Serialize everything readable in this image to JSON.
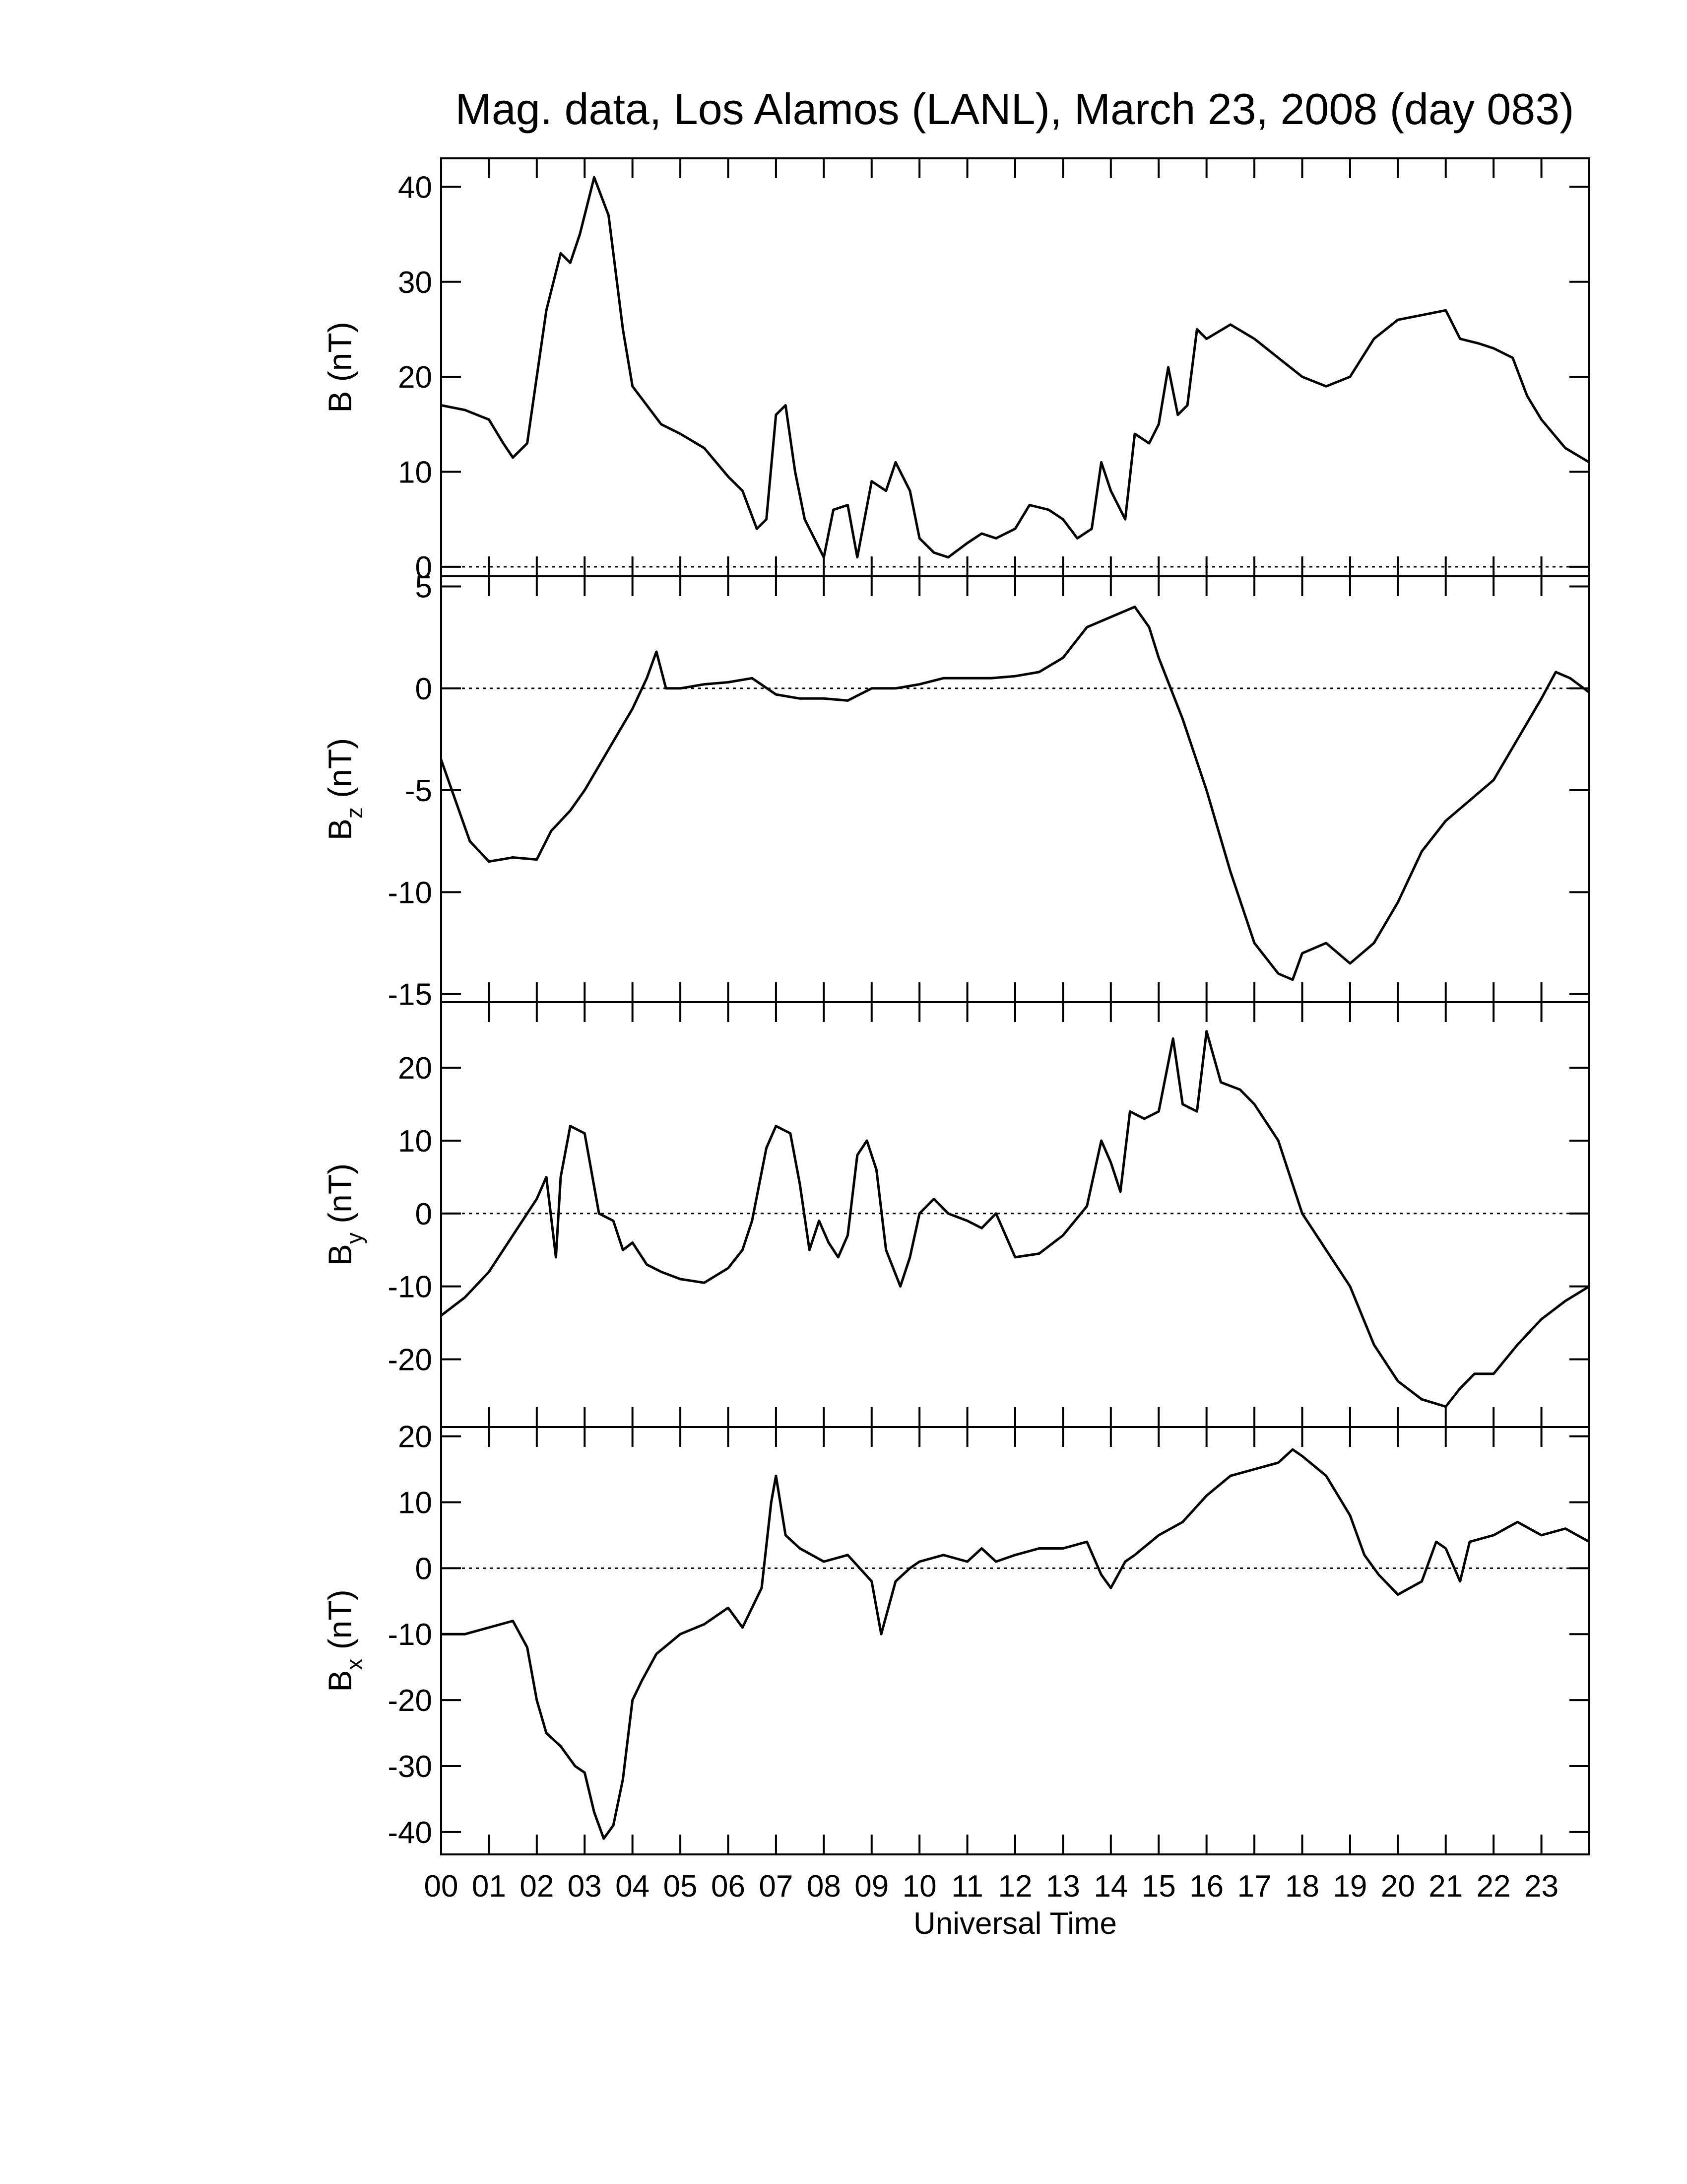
{
  "chart_data": [
    {
      "type": "line",
      "title": "Mag. data, Los Alamos (LANL), March 23, 2008 (day 083)",
      "ylabel": "B",
      "ylabel_unit": "(nT)",
      "color": "#000000",
      "zero_line": true,
      "xlim": [
        0,
        24
      ],
      "ylim": [
        -1,
        43
      ],
      "yticks": [
        0,
        10,
        20,
        30,
        40
      ],
      "x": [
        0,
        0.5,
        1,
        1.3,
        1.5,
        1.8,
        2,
        2.2,
        2.5,
        2.7,
        2.9,
        3.2,
        3.5,
        3.8,
        4,
        4.3,
        4.6,
        5,
        5.5,
        6,
        6.3,
        6.6,
        6.8,
        7,
        7.2,
        7.4,
        7.6,
        7.8,
        8,
        8.2,
        8.5,
        8.7,
        9,
        9.3,
        9.5,
        9.8,
        10,
        10.3,
        10.6,
        11,
        11.3,
        11.6,
        12,
        12.3,
        12.7,
        13,
        13.3,
        13.6,
        13.8,
        14,
        14.3,
        14.5,
        14.8,
        15,
        15.2,
        15.4,
        15.6,
        15.8,
        16,
        16.5,
        17,
        17.5,
        18,
        18.5,
        19,
        19.5,
        20,
        20.5,
        21,
        21.3,
        21.7,
        22,
        22.4,
        22.7,
        23,
        23.5,
        24
      ],
      "values": [
        17,
        16.5,
        15.5,
        13,
        11.5,
        13,
        20,
        27,
        33,
        32,
        35,
        41,
        37,
        25,
        19,
        17,
        15,
        14,
        12.5,
        9.5,
        8,
        4,
        5,
        16,
        17,
        10,
        5,
        3,
        1,
        6,
        6.5,
        1,
        9,
        8,
        11,
        8,
        3,
        1.5,
        1,
        2.5,
        3.5,
        3,
        4,
        6.5,
        6,
        5,
        3,
        4,
        11,
        8,
        5,
        14,
        13,
        15,
        21,
        16,
        17,
        25,
        24,
        25.5,
        24,
        22,
        20,
        19,
        20,
        24,
        26,
        26.5,
        27,
        24,
        23.5,
        23,
        22,
        18,
        15.5,
        12.5,
        11
      ]
    },
    {
      "type": "line",
      "ylabel": "B",
      "ylabel_sub": "z",
      "ylabel_unit": "(nT)",
      "color": "#000000",
      "zero_line": true,
      "xlim": [
        0,
        24
      ],
      "ylim": [
        -15.4,
        5.5
      ],
      "yticks": [
        5,
        0,
        -5,
        -10,
        -15
      ],
      "x": [
        0,
        0.3,
        0.6,
        1,
        1.5,
        2,
        2.3,
        2.7,
        3,
        3.5,
        4,
        4.3,
        4.5,
        4.7,
        5,
        5.5,
        6,
        6.5,
        7,
        7.5,
        8,
        8.5,
        9,
        9.5,
        10,
        10.5,
        11,
        11.5,
        12,
        12.5,
        13,
        13.5,
        14,
        14.5,
        14.8,
        15,
        15.5,
        16,
        16.5,
        17,
        17.5,
        17.8,
        18,
        18.5,
        19,
        19.5,
        20,
        20.5,
        21,
        21.5,
        22,
        22.5,
        23,
        23.3,
        23.6,
        24
      ],
      "values": [
        -3.5,
        -5.5,
        -7.5,
        -8.5,
        -8.3,
        -8.4,
        -7,
        -6,
        -5,
        -3,
        -1,
        0.5,
        1.8,
        0,
        0,
        0.2,
        0.3,
        0.5,
        -0.3,
        -0.5,
        -0.5,
        -0.6,
        0,
        0,
        0.2,
        0.5,
        0.5,
        0.5,
        0.6,
        0.8,
        1.5,
        3,
        3.5,
        4,
        3,
        1.5,
        -1.5,
        -5,
        -9,
        -12.5,
        -14,
        -14.3,
        -13,
        -12.5,
        -13.5,
        -12.5,
        -10.5,
        -8,
        -6.5,
        -5.5,
        -4.5,
        -2.5,
        -0.5,
        0.8,
        0.5,
        -0.2
      ]
    },
    {
      "type": "line",
      "ylabel": "B",
      "ylabel_sub": "y",
      "ylabel_unit": "(nT)",
      "color": "#000000",
      "zero_line": true,
      "xlim": [
        0,
        24
      ],
      "ylim": [
        -29.3,
        29
      ],
      "yticks": [
        20,
        10,
        0,
        -10,
        -20
      ],
      "x": [
        0,
        0.5,
        1,
        1.5,
        2,
        2.2,
        2.4,
        2.5,
        2.7,
        3,
        3.3,
        3.6,
        3.8,
        4,
        4.3,
        4.6,
        5,
        5.5,
        6,
        6.3,
        6.5,
        6.8,
        7,
        7.3,
        7.5,
        7.7,
        7.9,
        8.1,
        8.3,
        8.5,
        8.7,
        8.9,
        9.1,
        9.3,
        9.6,
        9.8,
        10,
        10.3,
        10.6,
        11,
        11.3,
        11.6,
        11.8,
        12,
        12.5,
        13,
        13.5,
        13.8,
        14,
        14.2,
        14.4,
        14.7,
        15,
        15.3,
        15.5,
        15.8,
        16,
        16.3,
        16.7,
        17,
        17.5,
        18,
        18.5,
        19,
        19.5,
        20,
        20.5,
        21,
        21.3,
        21.6,
        22,
        22.5,
        23,
        23.5,
        24
      ],
      "values": [
        -14,
        -11.5,
        -8,
        -3,
        2,
        5,
        -6,
        5,
        12,
        11,
        0,
        -1,
        -5,
        -4,
        -7,
        -8,
        -9,
        -9.5,
        -7.5,
        -5,
        -1,
        9,
        12,
        11,
        4,
        -5,
        -1,
        -4,
        -6,
        -3,
        8,
        10,
        6,
        -5,
        -10,
        -6,
        0,
        2,
        0,
        -1,
        -2,
        0,
        -3,
        -6,
        -5.5,
        -3,
        1,
        10,
        7,
        3,
        14,
        13,
        14,
        24,
        15,
        14,
        25,
        18,
        17,
        15,
        10,
        0,
        -5,
        -10,
        -18,
        -23,
        -25.5,
        -26.5,
        -24,
        -22,
        -22,
        -18,
        -14.5,
        -12,
        -10
      ]
    },
    {
      "type": "line",
      "ylabel": "B",
      "ylabel_sub": "x",
      "ylabel_unit": "(nT)",
      "color": "#000000",
      "zero_line": true,
      "xlabel": "Universal Time",
      "xlim": [
        0,
        24
      ],
      "ylim": [
        -43.4,
        21.4
      ],
      "yticks": [
        20,
        10,
        0,
        -10,
        -20,
        -30,
        -40
      ],
      "xticks": [
        {
          "value": 0,
          "label": "00"
        },
        {
          "value": 1,
          "label": "01"
        },
        {
          "value": 2,
          "label": "02"
        },
        {
          "value": 3,
          "label": "03"
        },
        {
          "value": 4,
          "label": "04"
        },
        {
          "value": 5,
          "label": "05"
        },
        {
          "value": 6,
          "label": "06"
        },
        {
          "value": 7,
          "label": "07"
        },
        {
          "value": 8,
          "label": "08"
        },
        {
          "value": 9,
          "label": "09"
        },
        {
          "value": 10,
          "label": "10"
        },
        {
          "value": 11,
          "label": "11"
        },
        {
          "value": 12,
          "label": "12"
        },
        {
          "value": 13,
          "label": "13"
        },
        {
          "value": 14,
          "label": "14"
        },
        {
          "value": 15,
          "label": "15"
        },
        {
          "value": 16,
          "label": "16"
        },
        {
          "value": 17,
          "label": "17"
        },
        {
          "value": 18,
          "label": "18"
        },
        {
          "value": 19,
          "label": "19"
        },
        {
          "value": 20,
          "label": "20"
        },
        {
          "value": 21,
          "label": "21"
        },
        {
          "value": 22,
          "label": "22"
        },
        {
          "value": 23,
          "label": "23"
        }
      ],
      "x": [
        0,
        0.5,
        1,
        1.5,
        1.8,
        2,
        2.2,
        2.5,
        2.8,
        3,
        3.2,
        3.4,
        3.6,
        3.8,
        4,
        4.2,
        4.5,
        5,
        5.5,
        6,
        6.3,
        6.7,
        6.9,
        7,
        7.2,
        7.5,
        8,
        8.5,
        9,
        9.2,
        9.5,
        9.8,
        10,
        10.5,
        11,
        11.3,
        11.6,
        12,
        12.5,
        13,
        13.5,
        13.8,
        14,
        14.3,
        14.5,
        15,
        15.5,
        16,
        16.5,
        17,
        17.5,
        17.8,
        18,
        18.5,
        19,
        19.3,
        19.6,
        20,
        20.5,
        20.8,
        21,
        21.3,
        21.5,
        22,
        22.5,
        23,
        23.5,
        24
      ],
      "values": [
        -10,
        -10,
        -9,
        -8,
        -12,
        -20,
        -25,
        -27,
        -30,
        -31,
        -37,
        -41,
        -39,
        -32,
        -20,
        -17,
        -13,
        -10,
        -8.5,
        -6,
        -9,
        -3,
        10,
        14,
        5,
        3,
        1,
        2,
        -2,
        -10,
        -2,
        0,
        1,
        2,
        1,
        3,
        1,
        2,
        3,
        3,
        4,
        -1,
        -3,
        1,
        2,
        5,
        7,
        11,
        14,
        15,
        16,
        18,
        17,
        14,
        8,
        2,
        -1,
        -4,
        -2,
        4,
        3,
        -2,
        4,
        5,
        7,
        5,
        6,
        4
      ]
    }
  ]
}
